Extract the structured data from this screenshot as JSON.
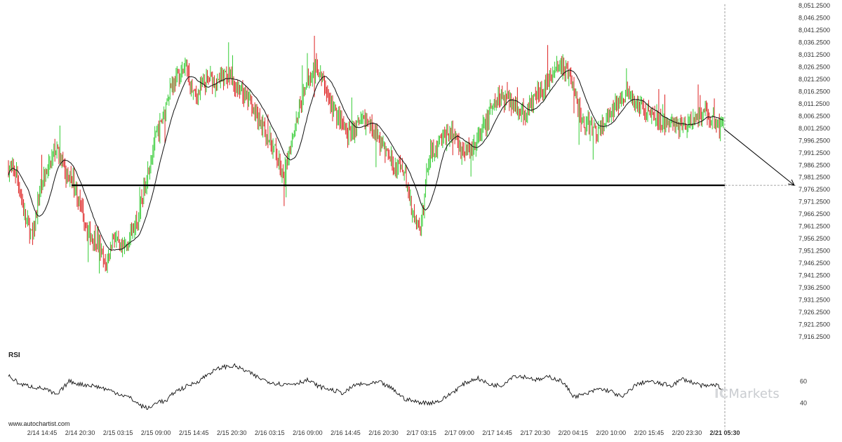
{
  "chart_data": {
    "type": "candlestick",
    "title": "",
    "instrument": "",
    "y_axis": {
      "ylim": [
        7916.25,
        8051.25
      ],
      "tick_labels": [
        "8,051.2500",
        "8,046.2500",
        "8,041.2500",
        "8,036.2500",
        "8,031.2500",
        "8,026.2500",
        "8,021.2500",
        "8,016.2500",
        "8,011.2500",
        "8,006.2500",
        "8,001.2500",
        "7,996.2500",
        "7,991.2500",
        "7,986.2500",
        "7,981.2500",
        "7,976.2500",
        "7,971.2500",
        "7,966.2500",
        "7,961.2500",
        "7,956.2500",
        "7,951.2500",
        "7,946.2500",
        "7,941.2500",
        "7,936.2500",
        "7,931.2500",
        "7,926.2500",
        "7,921.2500",
        "7,916.2500"
      ]
    },
    "x_axis": {
      "tick_labels": [
        "2/14 14:45",
        "2/14 20:30",
        "2/15 03:15",
        "2/15 09:00",
        "2/15 14:45",
        "2/15 20:30",
        "2/16 03:15",
        "2/16 09:00",
        "2/16 14:45",
        "2/16 20:30",
        "2/17 03:15",
        "2/17 09:00",
        "2/17 14:45",
        "2/17 20:30",
        "2/20 04:15",
        "2/20 10:00",
        "2/20 15:45",
        "2/20 23:30",
        "2/21 05:30"
      ],
      "current_time_label": "2/21 05:30"
    },
    "key_price_level": 7978.0,
    "forecast_arrow": {
      "from_price": 8001.0,
      "to_price": 7978.0
    },
    "close_anchors": [
      [
        0,
        7985
      ],
      [
        8,
        7983
      ],
      [
        16,
        7966
      ],
      [
        24,
        7956
      ],
      [
        32,
        7978
      ],
      [
        40,
        7985
      ],
      [
        48,
        7995
      ],
      [
        56,
        7982
      ],
      [
        64,
        7980
      ],
      [
        72,
        7968
      ],
      [
        80,
        7958
      ],
      [
        88,
        7956
      ],
      [
        96,
        7944
      ],
      [
        104,
        7958
      ],
      [
        112,
        7950
      ],
      [
        120,
        7957
      ],
      [
        128,
        7965
      ],
      [
        136,
        7980
      ],
      [
        144,
        7995
      ],
      [
        152,
        8004
      ],
      [
        160,
        8018
      ],
      [
        168,
        8022
      ],
      [
        176,
        8026
      ],
      [
        184,
        8014
      ],
      [
        192,
        8018
      ],
      [
        200,
        8022
      ],
      [
        208,
        8020
      ],
      [
        216,
        8024
      ],
      [
        224,
        8018
      ],
      [
        232,
        8015
      ],
      [
        240,
        8012
      ],
      [
        248,
        8004
      ],
      [
        256,
        7998
      ],
      [
        264,
        7992
      ],
      [
        272,
        7980
      ],
      [
        280,
        7996
      ],
      [
        288,
        8010
      ],
      [
        296,
        8022
      ],
      [
        304,
        8026
      ],
      [
        312,
        8020
      ],
      [
        320,
        8010
      ],
      [
        328,
        8004
      ],
      [
        336,
        7998
      ],
      [
        344,
        8002
      ],
      [
        352,
        8004
      ],
      [
        360,
        8002
      ],
      [
        368,
        7996
      ],
      [
        376,
        7990
      ],
      [
        384,
        7985
      ],
      [
        392,
        7984
      ],
      [
        400,
        7966
      ],
      [
        408,
        7958
      ],
      [
        416,
        7990
      ],
      [
        424,
        7994
      ],
      [
        432,
        7998
      ],
      [
        440,
        8000
      ],
      [
        448,
        7993
      ],
      [
        456,
        7992
      ],
      [
        464,
        7996
      ],
      [
        472,
        8003
      ],
      [
        480,
        8010
      ],
      [
        488,
        8015
      ],
      [
        496,
        8012
      ],
      [
        504,
        8010
      ],
      [
        512,
        8007
      ],
      [
        520,
        8012
      ],
      [
        528,
        8017
      ],
      [
        536,
        8022
      ],
      [
        544,
        8027
      ],
      [
        552,
        8025
      ],
      [
        560,
        8018
      ],
      [
        568,
        8004
      ],
      [
        576,
        8002
      ],
      [
        584,
        8000
      ],
      [
        592,
        8004
      ],
      [
        600,
        8009
      ],
      [
        608,
        8016
      ],
      [
        616,
        8013
      ],
      [
        624,
        8011
      ],
      [
        632,
        8009
      ],
      [
        640,
        8008
      ],
      [
        648,
        8003
      ],
      [
        656,
        8004
      ],
      [
        664,
        8001
      ],
      [
        672,
        8002
      ],
      [
        680,
        8004
      ],
      [
        688,
        8009
      ],
      [
        696,
        8005
      ],
      [
        704,
        8002
      ],
      [
        708,
        8003
      ]
    ],
    "rsi": {
      "title": "RSI",
      "tick_labels": [
        "60",
        "40"
      ],
      "levels": [
        60,
        40
      ],
      "anchors": [
        [
          0,
          65
        ],
        [
          12,
          57
        ],
        [
          24,
          55
        ],
        [
          36,
          53
        ],
        [
          48,
          47
        ],
        [
          60,
          60
        ],
        [
          72,
          57
        ],
        [
          84,
          56
        ],
        [
          96,
          53
        ],
        [
          108,
          49
        ],
        [
          120,
          45
        ],
        [
          132,
          37
        ],
        [
          140,
          35
        ],
        [
          148,
          42
        ],
        [
          156,
          41
        ],
        [
          164,
          50
        ],
        [
          176,
          55
        ],
        [
          188,
          60
        ],
        [
          200,
          68
        ],
        [
          212,
          73
        ],
        [
          224,
          74
        ],
        [
          236,
          69
        ],
        [
          248,
          63
        ],
        [
          260,
          59
        ],
        [
          272,
          57
        ],
        [
          284,
          58
        ],
        [
          296,
          61
        ],
        [
          308,
          55
        ],
        [
          320,
          52
        ],
        [
          332,
          49
        ],
        [
          344,
          57
        ],
        [
          356,
          57
        ],
        [
          368,
          59
        ],
        [
          380,
          53
        ],
        [
          392,
          44
        ],
        [
          404,
          41
        ],
        [
          416,
          40
        ],
        [
          428,
          42
        ],
        [
          440,
          50
        ],
        [
          452,
          58
        ],
        [
          464,
          63
        ],
        [
          476,
          57
        ],
        [
          488,
          56
        ],
        [
          500,
          65
        ],
        [
          512,
          64
        ],
        [
          524,
          61
        ],
        [
          536,
          64
        ],
        [
          548,
          60
        ],
        [
          560,
          46
        ],
        [
          572,
          48
        ],
        [
          584,
          53
        ],
        [
          596,
          51
        ],
        [
          608,
          45
        ],
        [
          620,
          56
        ],
        [
          632,
          60
        ],
        [
          644,
          58
        ],
        [
          656,
          56
        ],
        [
          668,
          62
        ],
        [
          680,
          58
        ],
        [
          690,
          55
        ],
        [
          700,
          57
        ],
        [
          708,
          52
        ]
      ]
    }
  },
  "watermark": "www.autochartist.com",
  "brand": {
    "prefix": "IC",
    "name": "Markets"
  },
  "colors": {
    "up": "#33cc33",
    "down": "#dd2222",
    "ma": "#111111",
    "level": "#000000",
    "grid": "#555555"
  }
}
